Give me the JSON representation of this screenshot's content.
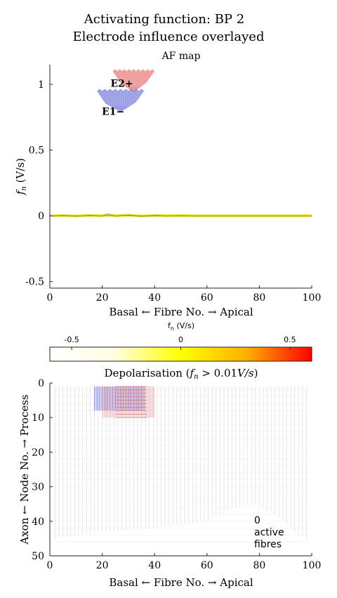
{
  "figure": {
    "title_line1": "Activating function: BP 2",
    "title_line2": "Electrode influence overlayed"
  },
  "chart_data": [
    {
      "type": "line",
      "title": "AF map",
      "xlabel": "Basal ← Fibre No. → Apical",
      "ylabel": "f_n (V/s)",
      "ylabel_main": "f",
      "ylabel_sub": "n",
      "ylabel_unit": " (V/s)",
      "xlim": [
        0,
        100
      ],
      "ylim": [
        -0.55,
        1.15
      ],
      "xticks": [
        0,
        20,
        40,
        60,
        80,
        100
      ],
      "yticks": [
        -0.5,
        0,
        0.5,
        1
      ],
      "ytick_labels": [
        "-0.5",
        "0",
        "0.5",
        "1"
      ],
      "series": [
        {
          "name": "activating function",
          "color": "#e8e000",
          "x": [
            1,
            5,
            10,
            15,
            20,
            22,
            25,
            30,
            35,
            40,
            45,
            50,
            55,
            60,
            65,
            70,
            75,
            80,
            85,
            90,
            95,
            100
          ],
          "y": [
            0.0,
            0.003,
            -0.002,
            0.004,
            0.0,
            0.01,
            0.0,
            0.006,
            -0.003,
            0.003,
            0.0,
            0.002,
            0.0,
            0.0,
            0.0,
            0.0,
            0.0,
            0.0,
            0.0,
            0.0,
            0.0,
            0.0
          ]
        }
      ],
      "electrodes": [
        {
          "name": "E2+",
          "fibre_start": 24,
          "fibre_end": 40,
          "level": 1.1,
          "polarity": "positive",
          "color": "#e88080"
        },
        {
          "name": "E1−",
          "fibre_start": 18,
          "fibre_end": 36,
          "level": 0.95,
          "polarity": "negative",
          "color": "#7f84e0"
        }
      ]
    },
    {
      "type": "heatmap",
      "colorbar": {
        "label": "f",
        "label_sub": "n",
        "label_unit": " (V/s)",
        "ticks": [
          "-0.5",
          "0",
          "0.5"
        ],
        "tick_values": [
          -0.5,
          0,
          0.5
        ],
        "range": [
          -0.6,
          0.6
        ],
        "colors": [
          "#ffffff",
          "#fffde0",
          "#ffff00",
          "#ffb000",
          "#ff0000"
        ]
      },
      "title": "Depolarisation (f_n > 0.01V/s)",
      "title_prefix": "Depolarisation (",
      "title_f": "f",
      "title_sub": "n",
      "title_suffix": " > 0.01",
      "title_unit": "V/s",
      "title_close": ")",
      "xlabel": "Basal ← Fibre No. → Apical",
      "ylabel": "Axon ← Node No. → Process",
      "xlim": [
        0,
        100
      ],
      "ylim": [
        0,
        50
      ],
      "xticks": [
        0,
        20,
        40,
        60,
        80,
        100
      ],
      "yticks": [
        0,
        10,
        20,
        30,
        40,
        50
      ],
      "active_fibres_count": "0",
      "active_fibres_label_1": "active",
      "active_fibres_label_2": "fibres",
      "influence_blue": {
        "fibres": [
          17,
          36
        ],
        "nodes": [
          1,
          8
        ]
      },
      "influence_red": {
        "fibres": [
          20,
          40
        ],
        "nodes": [
          1,
          10
        ]
      },
      "depth_profile": [
        {
          "fibre": 2,
          "node": 45
        },
        {
          "fibre": 10,
          "node": 44
        },
        {
          "fibre": 20,
          "node": 43
        },
        {
          "fibre": 40,
          "node": 42
        },
        {
          "fibre": 60,
          "node": 40
        },
        {
          "fibre": 70,
          "node": 36
        },
        {
          "fibre": 78,
          "node": 35
        },
        {
          "fibre": 86,
          "node": 38
        },
        {
          "fibre": 92,
          "node": 42
        },
        {
          "fibre": 99,
          "node": 46
        }
      ]
    }
  ]
}
